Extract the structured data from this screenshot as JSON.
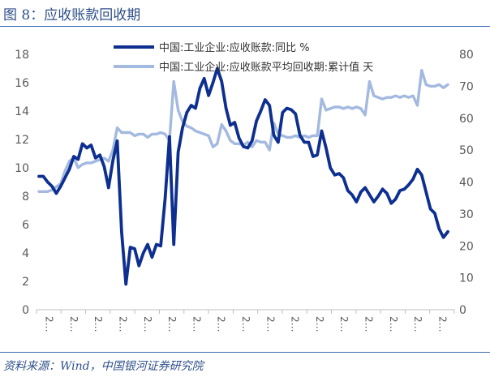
{
  "figure": {
    "title": "图 8：应收账款回收期",
    "source": "资料来源：Wind，中国银河证券研究院"
  },
  "colors": {
    "series1": "#0d2f8f",
    "series2": "#a3b9e0",
    "axis": "#bfbfbf",
    "rule": "#3c6cb0"
  },
  "chart_data": {
    "type": "line",
    "title": "应收账款回收期",
    "legend_position": "top-right",
    "x_tick_labels": [
      "2…",
      "2…",
      "2…",
      "2…",
      "2…",
      "2…",
      "2…",
      "2…",
      "2…",
      "2…",
      "2…",
      "2…",
      "2…",
      "2…",
      "2…",
      "2…",
      "2…"
    ],
    "y_left": {
      "min": 0,
      "max": 18,
      "ticks": [
        0,
        2,
        4,
        6,
        8,
        10,
        12,
        14,
        16,
        18
      ]
    },
    "y_right": {
      "min": 0,
      "max": 80,
      "ticks": [
        0,
        10,
        20,
        30,
        40,
        50,
        60,
        70,
        80
      ]
    },
    "series": [
      {
        "name": "中国:工业企业:应收账款:同比 %",
        "axis": "left",
        "values": [
          9.4,
          9.4,
          9.0,
          8.7,
          8.2,
          8.7,
          9.3,
          9.9,
          10.8,
          10.6,
          11.7,
          11.4,
          11.6,
          10.7,
          10.9,
          10.1,
          8.6,
          10.5,
          11.9,
          5.5,
          1.8,
          4.4,
          4.3,
          3.1,
          4.0,
          4.6,
          3.7,
          4.6,
          4.5,
          7.8,
          12.2,
          4.6,
          11.1,
          12.8,
          13.9,
          14.4,
          14.2,
          15.6,
          16.3,
          15.1,
          16.0,
          17.0,
          16.1,
          14.2,
          13.0,
          13.2,
          12.1,
          11.5,
          11.4,
          11.9,
          13.3,
          14.0,
          14.8,
          14.4,
          12.3,
          11.8,
          13.9,
          14.2,
          14.1,
          13.8,
          12.3,
          11.8,
          11.8,
          10.8,
          10.9,
          12.6,
          11.4,
          10.0,
          9.5,
          9.6,
          9.3,
          8.4,
          8.1,
          7.6,
          8.3,
          8.6,
          8.1,
          7.6,
          8.0,
          8.5,
          8.2,
          7.5,
          7.8,
          8.4,
          8.5,
          8.8,
          9.2,
          9.9,
          9.5,
          8.3,
          7.1,
          6.8,
          5.7,
          5.1,
          5.5
        ]
      },
      {
        "name": "中国:工业企业:应收账款平均回收期:累计值 天",
        "axis": "right",
        "values": [
          37,
          37,
          37,
          37.5,
          38.5,
          39.5,
          43.5,
          46.5,
          47.5,
          44.5,
          45.5,
          46,
          46,
          46.5,
          47,
          47.5,
          46.5,
          50,
          57,
          55.5,
          55.5,
          55.5,
          54.5,
          55,
          55,
          54,
          55,
          55,
          55.5,
          55,
          53,
          71.5,
          62.5,
          59,
          57.5,
          57,
          56,
          55.5,
          55,
          54.5,
          51,
          52,
          58,
          56,
          53,
          52,
          52,
          51.5,
          52.5,
          51,
          53,
          52.5,
          52.5,
          50,
          58.5,
          55,
          54.5,
          54,
          54,
          54.5,
          54,
          54.5,
          54,
          54.5,
          54.5,
          66,
          62.5,
          63,
          63.5,
          63.5,
          63,
          63.5,
          63,
          63.5,
          63,
          61,
          71.5,
          67,
          66.5,
          66,
          66.5,
          66.5,
          67,
          66.5,
          67,
          66.5,
          67,
          64,
          75,
          70.5,
          70,
          70,
          70.5,
          69.5,
          70.5
        ]
      }
    ]
  }
}
